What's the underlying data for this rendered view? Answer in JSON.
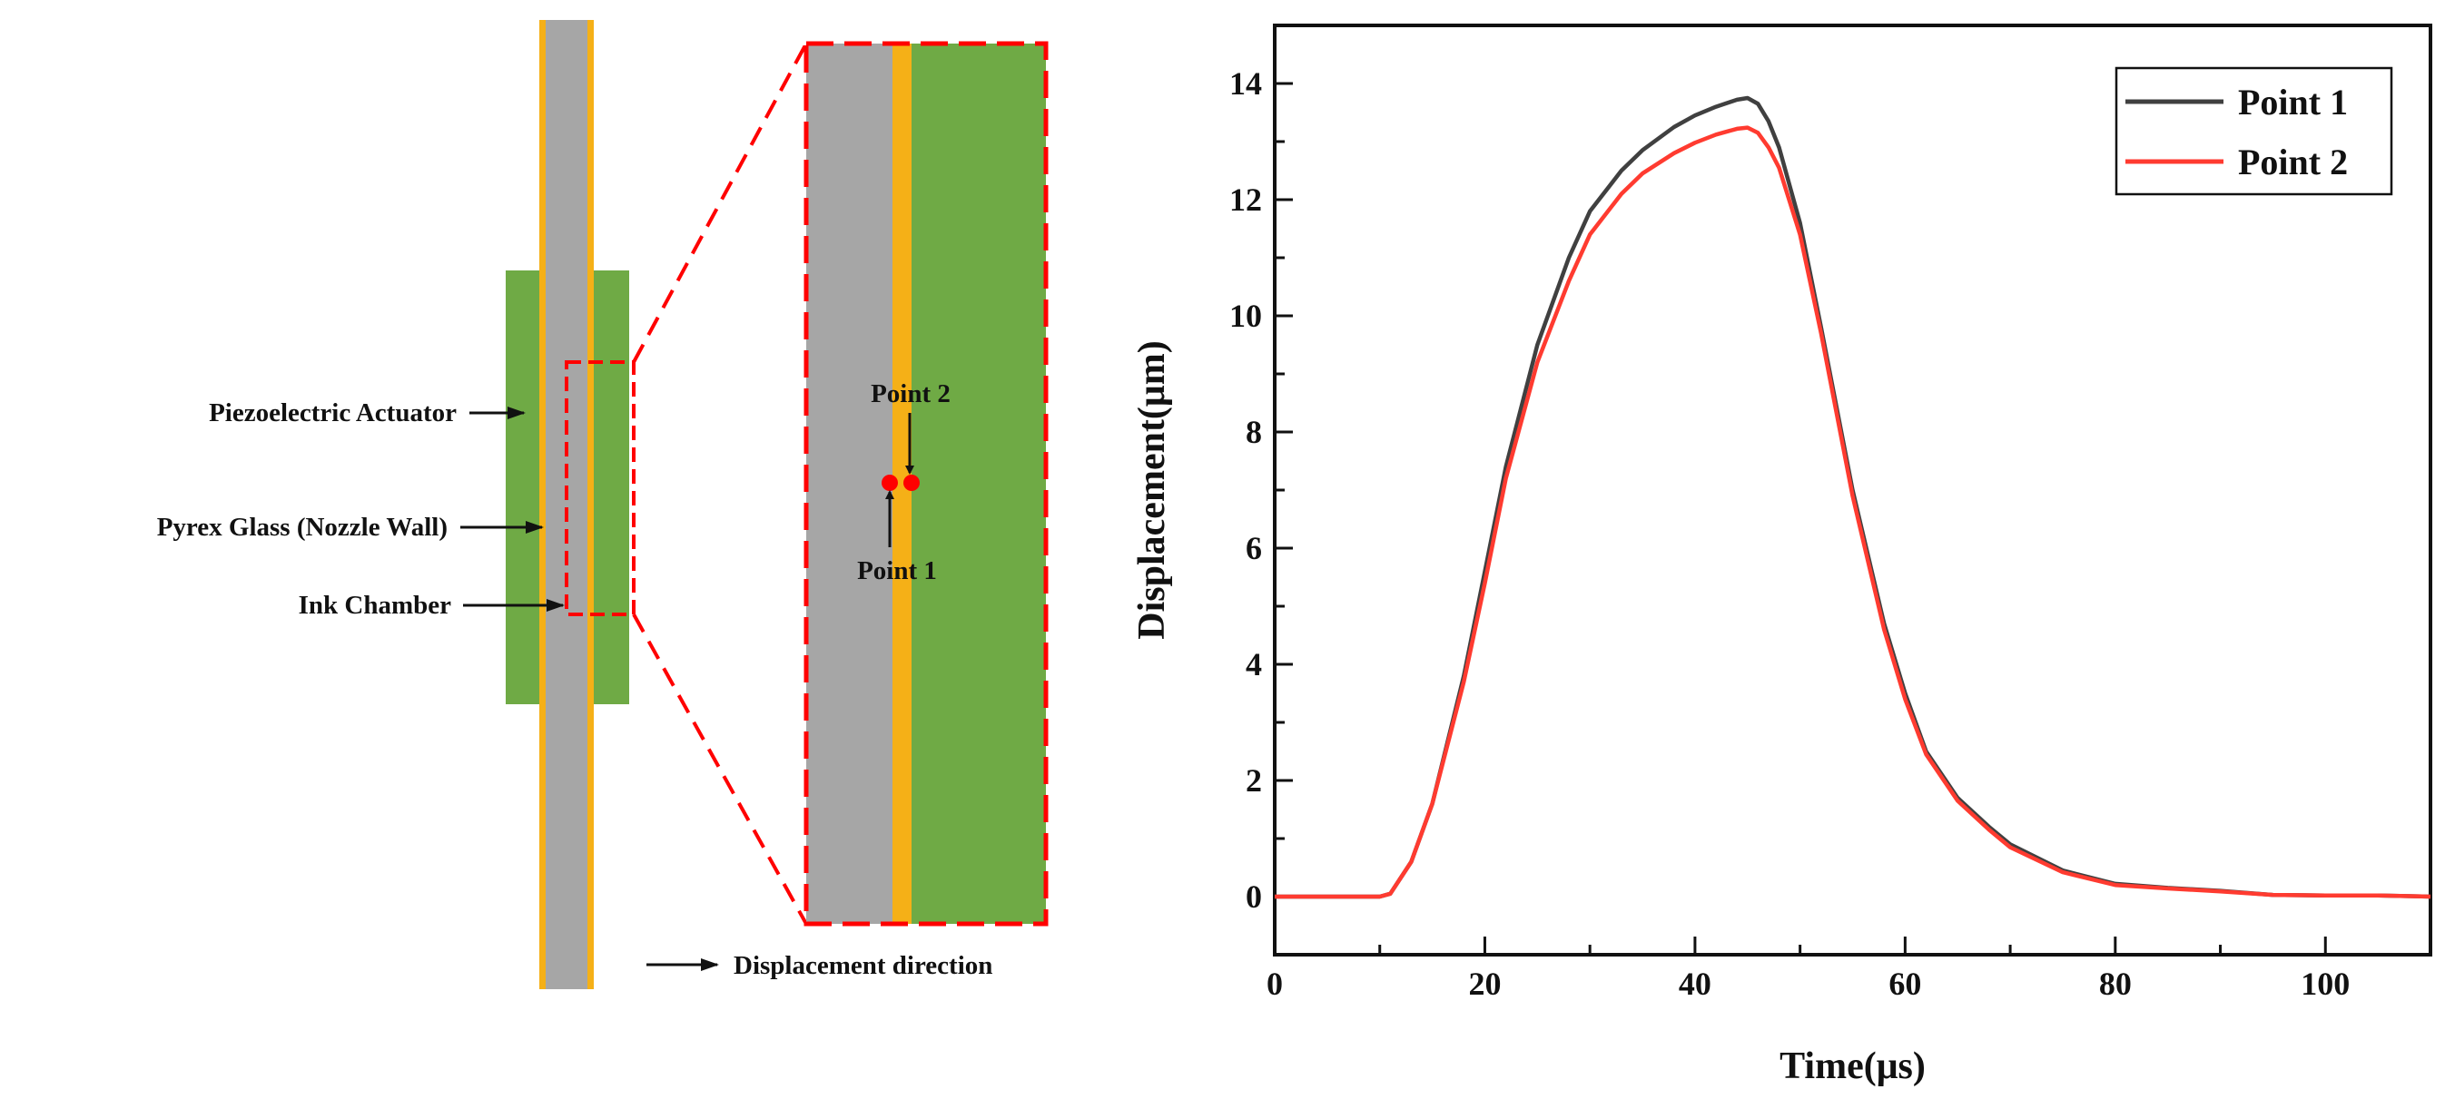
{
  "schematic": {
    "labels": {
      "piezo": "Piezoelectric Actuator",
      "pyrex": "Pyrex Glass (Nozzle Wall)",
      "ink": "Ink Chamber"
    },
    "zoom": {
      "point1": "Point 1",
      "point2": "Point 2",
      "direction": "Displacement direction"
    },
    "colors": {
      "piezo": "#6faa45",
      "glass": "#f5b017",
      "ink": "#a6a6a6",
      "highlight": "#ff0000"
    }
  },
  "chart_data": {
    "type": "line",
    "title": "",
    "xlabel": "Time(μs)",
    "ylabel": "Displacement(μm)",
    "xlim": [
      0,
      110
    ],
    "ylim": [
      -1,
      15
    ],
    "xticks": [
      0,
      20,
      40,
      60,
      80,
      100
    ],
    "yticks": [
      0,
      2,
      4,
      6,
      8,
      10,
      12,
      14
    ],
    "legend_position": "top-right",
    "series": [
      {
        "name": "Point 1",
        "color": "#404040",
        "x": [
          0,
          5,
          10,
          11,
          13,
          15,
          18,
          20,
          22,
          25,
          28,
          30,
          33,
          35,
          38,
          40,
          42,
          44,
          45,
          46,
          47,
          48,
          50,
          52,
          55,
          58,
          60,
          62,
          65,
          68,
          70,
          75,
          80,
          85,
          90,
          95,
          100,
          105,
          110
        ],
        "y": [
          0,
          0,
          0,
          0.05,
          0.6,
          1.6,
          3.8,
          5.6,
          7.4,
          9.5,
          11.0,
          11.8,
          12.5,
          12.85,
          13.25,
          13.45,
          13.6,
          13.72,
          13.75,
          13.65,
          13.35,
          12.9,
          11.6,
          9.8,
          7.0,
          4.7,
          3.5,
          2.5,
          1.7,
          1.2,
          0.9,
          0.45,
          0.22,
          0.15,
          0.1,
          0.03,
          0.02,
          0.02,
          0.0
        ]
      },
      {
        "name": "Point 2",
        "color": "#ff3b30",
        "x": [
          0,
          5,
          10,
          11,
          13,
          15,
          18,
          20,
          22,
          25,
          28,
          30,
          33,
          35,
          38,
          40,
          42,
          44,
          45,
          46,
          47,
          48,
          50,
          52,
          55,
          58,
          60,
          62,
          65,
          68,
          70,
          75,
          80,
          85,
          90,
          95,
          100,
          105,
          110
        ],
        "y": [
          0,
          0,
          0,
          0.05,
          0.6,
          1.6,
          3.7,
          5.4,
          7.2,
          9.2,
          10.6,
          11.4,
          12.1,
          12.45,
          12.8,
          12.98,
          13.12,
          13.22,
          13.24,
          13.15,
          12.9,
          12.55,
          11.4,
          9.7,
          6.9,
          4.6,
          3.4,
          2.45,
          1.65,
          1.15,
          0.85,
          0.42,
          0.2,
          0.14,
          0.09,
          0.03,
          0.02,
          0.02,
          0.0
        ]
      }
    ]
  }
}
